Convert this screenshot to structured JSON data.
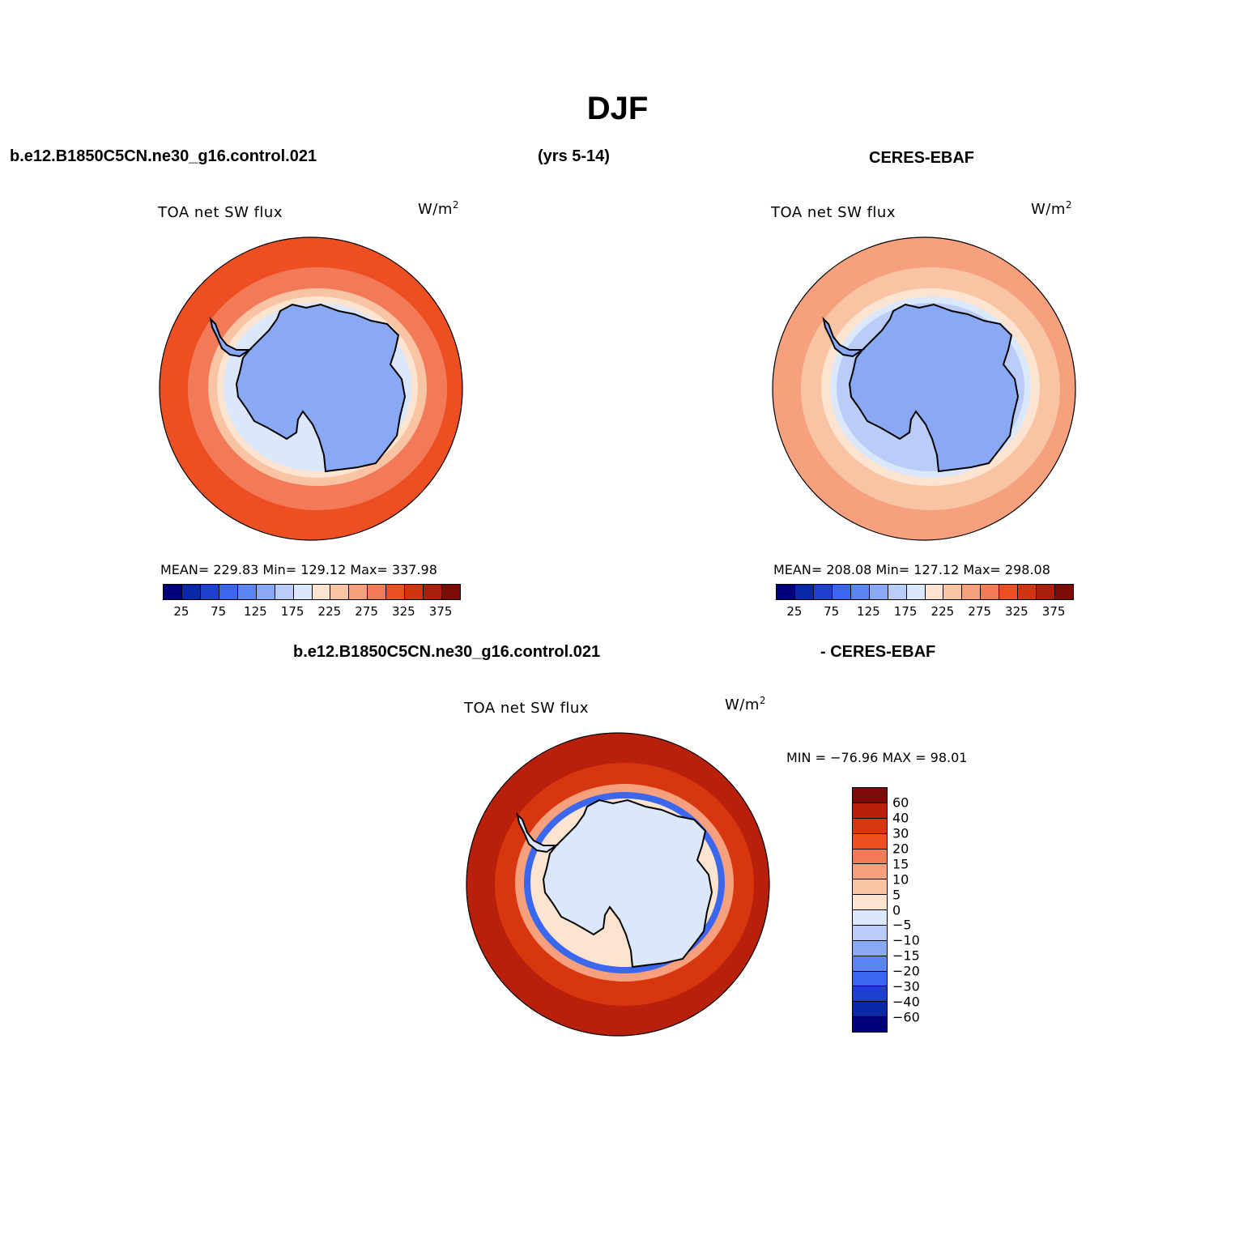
{
  "figure": {
    "title": "DJF",
    "case_name": "b.e12.B1850C5CN.ne30_g16.control.021",
    "years": "(yrs 5-14)",
    "obs_name": "CERES-EBAF",
    "diff_case_name": "b.e12.B1850C5CN.ne30_g16.control.021",
    "diff_obs_name": "- CERES-EBAF"
  },
  "panels": {
    "model": {
      "variable": "TOA net SW flux",
      "units": "W/m",
      "units_exp": "2",
      "stats": "MEAN= 229.83   Min= 129.12   Max= 337.98"
    },
    "obs": {
      "variable": "TOA net SW flux",
      "units": "W/m",
      "units_exp": "2",
      "stats": "MEAN= 208.08   Min= 127.12   Max= 298.08"
    },
    "diff": {
      "variable": "TOA net SW flux",
      "units": "W/m",
      "units_exp": "2",
      "stats": "MIN = −76.96 MAX =  98.01"
    }
  },
  "colorbars": {
    "abs": {
      "colors": [
        "#00007a",
        "#0a27a6",
        "#1e3fd0",
        "#3b66ee",
        "#5b86f2",
        "#8aa9f5",
        "#b9cdf8",
        "#dbe8fb",
        "#fde4d0",
        "#f9c4a4",
        "#f6a07e",
        "#f27a58",
        "#ee4f22",
        "#d0350f",
        "#a6200b",
        "#7e0a08"
      ],
      "tick_labels": [
        "25",
        "75",
        "125",
        "175",
        "225",
        "275",
        "325",
        "375"
      ]
    },
    "diff": {
      "colors_top_to_bottom": [
        "#7e0a08",
        "#b8200b",
        "#d8360e",
        "#ee4f22",
        "#f27a58",
        "#f6a07e",
        "#f9c4a4",
        "#fde4d0",
        "#dbe8fb",
        "#b9cdf8",
        "#8aa9f5",
        "#5b86f2",
        "#3b66ee",
        "#1e3fd0",
        "#0a27a6",
        "#00007a"
      ],
      "tick_labels": [
        "60",
        "40",
        "30",
        "20",
        "15",
        "10",
        "5",
        "0",
        "−5",
        "−10",
        "−15",
        "−20",
        "−30",
        "−40",
        "−60"
      ]
    }
  },
  "map_colors": {
    "model": {
      "ocean_outer": "#ee4f22",
      "ring1": "#f27a58",
      "ring2": "#f9c4a4",
      "ring3": "#fde4d0",
      "ring4": "#dbe8fb",
      "land": "#8aa9f5"
    },
    "obs": {
      "ocean_outer": "#f6a07e",
      "ring1": "#f9c4a4",
      "ring2": "#fde4d0",
      "ring3": "#dbe8fb",
      "ring4": "#b9cdf8",
      "land": "#8aa9f5"
    },
    "diff": {
      "ocean_outer": "#b8200b",
      "ring1": "#d8360e",
      "ring2": "#f6a07e",
      "ring3": "#3b66ee",
      "ring4": "#fde4d0",
      "land": "#dbe8fb"
    }
  }
}
